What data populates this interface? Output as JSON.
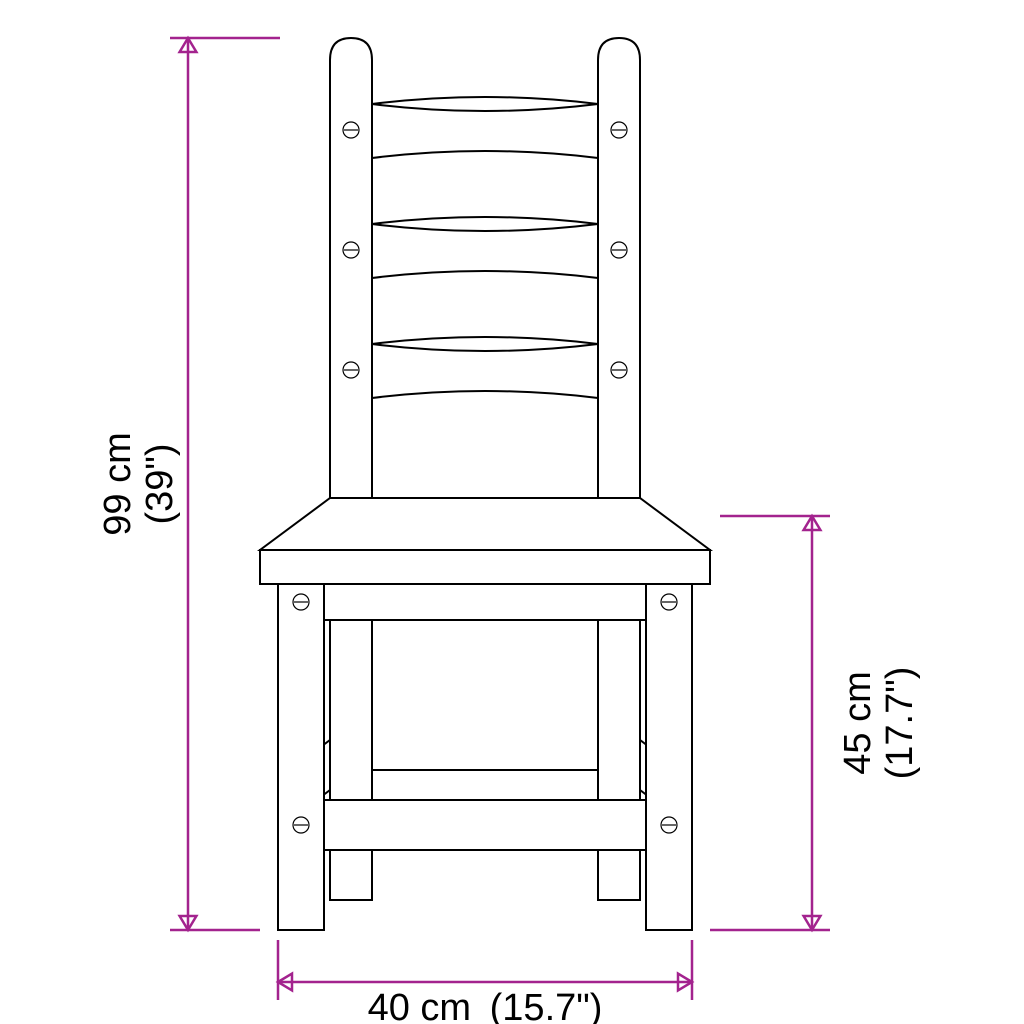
{
  "diagram": {
    "type": "dimensioned-line-drawing",
    "subject": "ladder-back-chair",
    "background_color": "#ffffff",
    "line_color": "#000000",
    "line_width": 2,
    "dimension_color": "#a3238e",
    "dimension_line_width": 2.5,
    "dimension_font_size": 38,
    "dimensions": {
      "total_height": {
        "cm": "99 cm",
        "in": "(39\")"
      },
      "seat_height": {
        "cm": "45 cm",
        "in": "(17.7\")"
      },
      "width": {
        "cm": "40 cm",
        "in": "(15.7\")"
      }
    },
    "arrow_size": 14
  }
}
